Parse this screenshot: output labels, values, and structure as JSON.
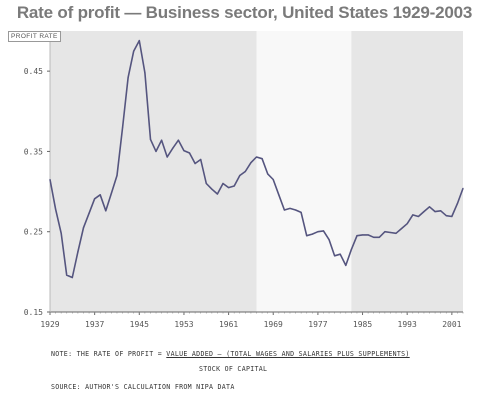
{
  "chart_data": {
    "type": "line",
    "title": "Rate of profit — Business sector, United States 1929-2003",
    "ylabel": "PROFIT RATE",
    "xlim": [
      1929,
      2003
    ],
    "ylim": [
      0.15,
      0.5
    ],
    "yticks": [
      0.15,
      0.25,
      0.35,
      0.45
    ],
    "ytick_labels": [
      "0.15",
      "0.25",
      "0.35",
      "0.45"
    ],
    "xticks": [
      1929,
      1937,
      1945,
      1953,
      1961,
      1969,
      1977,
      1985,
      1993,
      2001
    ],
    "xtick_labels": [
      "1929",
      "1937",
      "1945",
      "1953",
      "1961",
      "1969",
      "1977",
      "1985",
      "1993",
      "2001"
    ],
    "grid": false,
    "shaded_periods": [
      {
        "from": 1929,
        "to": 1966,
        "color": "#e6e6e6"
      },
      {
        "from": 1966,
        "to": 1983,
        "color": "#f8f8f8"
      },
      {
        "from": 1983,
        "to": 2003,
        "color": "#e6e6e6"
      }
    ],
    "series": [
      {
        "color": "#55557f",
        "x": [
          1929,
          1930,
          1931,
          1932,
          1933,
          1934,
          1935,
          1936,
          1937,
          1938,
          1939,
          1940,
          1941,
          1942,
          1943,
          1944,
          1945,
          1946,
          1947,
          1948,
          1949,
          1950,
          1951,
          1952,
          1953,
          1954,
          1955,
          1956,
          1957,
          1958,
          1959,
          1960,
          1961,
          1962,
          1963,
          1964,
          1965,
          1966,
          1967,
          1968,
          1969,
          1970,
          1971,
          1972,
          1973,
          1974,
          1975,
          1976,
          1977,
          1978,
          1979,
          1980,
          1981,
          1982,
          1983,
          1984,
          1985,
          1986,
          1987,
          1988,
          1989,
          1990,
          1991,
          1992,
          1993,
          1994,
          1995,
          1996,
          1997,
          1998,
          1999,
          2000,
          2001,
          2002,
          2003
        ],
        "values": [
          0.315,
          0.278,
          0.248,
          0.196,
          0.193,
          0.225,
          0.255,
          0.273,
          0.291,
          0.296,
          0.276,
          0.298,
          0.32,
          0.38,
          0.442,
          0.475,
          0.488,
          0.448,
          0.365,
          0.35,
          0.364,
          0.343,
          0.354,
          0.364,
          0.351,
          0.348,
          0.335,
          0.34,
          0.31,
          0.303,
          0.297,
          0.31,
          0.305,
          0.307,
          0.32,
          0.325,
          0.336,
          0.343,
          0.341,
          0.322,
          0.315,
          0.296,
          0.277,
          0.279,
          0.277,
          0.274,
          0.245,
          0.247,
          0.25,
          0.251,
          0.24,
          0.22,
          0.222,
          0.208,
          0.228,
          0.245,
          0.246,
          0.246,
          0.243,
          0.243,
          0.25,
          0.249,
          0.248,
          0.254,
          0.26,
          0.271,
          0.269,
          0.275,
          0.281,
          0.275,
          0.276,
          0.27,
          0.269,
          0.285,
          0.304
        ]
      }
    ]
  },
  "notes": {
    "prefix": "NOTE: THE RATE OF PROFIT = ",
    "numerator": "VALUE ADDED – (TOTAL WAGES AND SALARIES PLUS SUPPLEMENTS)",
    "denominator": "STOCK OF CAPITAL",
    "source": "SOURCE: AUTHOR'S CALCULATION FROM NIPA DATA"
  }
}
